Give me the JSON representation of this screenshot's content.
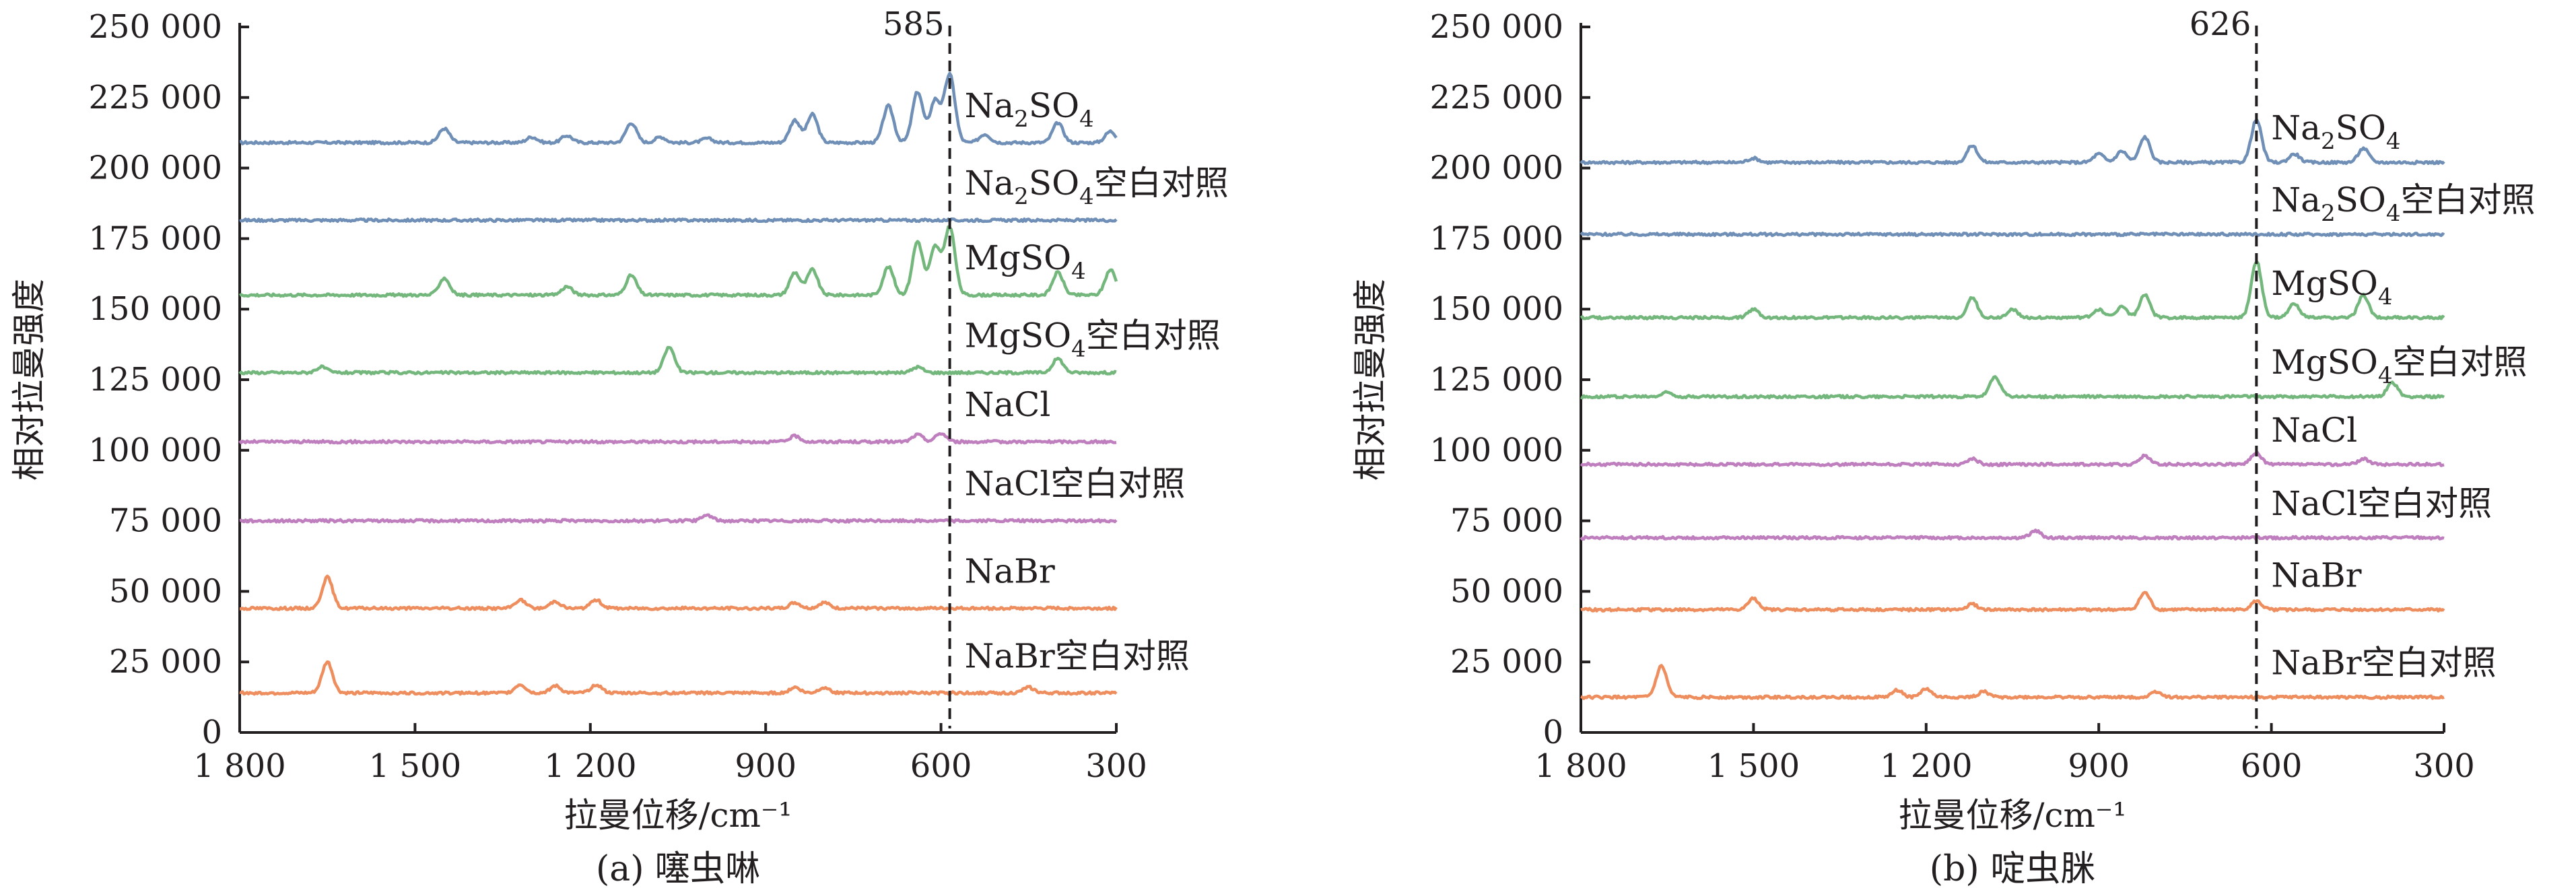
{
  "chart_data": [
    {
      "type": "line",
      "caption": "(a) 噻虫啉",
      "xlabel": "拉曼位移/cm⁻¹",
      "ylabel": "相对拉曼强度",
      "xlim": [
        1800,
        300
      ],
      "ylim": [
        0,
        250000
      ],
      "x_ticks": [
        1800,
        1500,
        1200,
        900,
        600,
        300
      ],
      "x_tick_labels": [
        "1 800",
        "1 500",
        "1 200",
        "900",
        "600",
        "300"
      ],
      "y_ticks": [
        0,
        25000,
        50000,
        75000,
        100000,
        125000,
        150000,
        175000,
        200000,
        225000,
        250000
      ],
      "y_tick_labels": [
        "0",
        "25 000",
        "50 000",
        "75 000",
        "100 000",
        "125 000",
        "150 000",
        "175 000",
        "200 000",
        "225 000",
        "250 000"
      ],
      "reference_line": {
        "x": 585,
        "label": "585"
      },
      "colors": {
        "Na2SO4": "#6f8fb7",
        "MgSO4": "#74b77c",
        "NaCl": "#bf7fbe",
        "NaBr": "#ee8d5d"
      },
      "series": [
        {
          "name": "Na2SO4",
          "display": {
            "main": "Na",
            "sub": "2",
            "mid": "SO",
            "sub2": "4",
            "suffix": ""
          },
          "color_key": "Na2SO4",
          "baseline": 209000,
          "peaks": [
            [
              1450,
              5000
            ],
            [
              1300,
              2000
            ],
            [
              1240,
              2500
            ],
            [
              1130,
              7000
            ],
            [
              1080,
              2000
            ],
            [
              1000,
              1500
            ],
            [
              850,
              8000
            ],
            [
              820,
              10000
            ],
            [
              690,
              13000
            ],
            [
              640,
              18000
            ],
            [
              610,
              15000
            ],
            [
              585,
              24000
            ],
            [
              525,
              3000
            ],
            [
              400,
              7000
            ],
            [
              310,
              4000
            ]
          ]
        },
        {
          "name": "Na2SO4空白对照",
          "display": {
            "main": "Na",
            "sub": "2",
            "mid": "SO",
            "sub2": "4",
            "suffix": "空白对照"
          },
          "color_key": "Na2SO4",
          "baseline": 181500,
          "peaks": []
        },
        {
          "name": "MgSO4",
          "display": {
            "main": "MgSO",
            "sub": "4",
            "mid": "",
            "sub2": "",
            "suffix": ""
          },
          "color_key": "MgSO4",
          "baseline": 155000,
          "peaks": [
            [
              1450,
              6000
            ],
            [
              1240,
              3000
            ],
            [
              1130,
              7000
            ],
            [
              850,
              8000
            ],
            [
              820,
              9000
            ],
            [
              690,
              10000
            ],
            [
              640,
              19000
            ],
            [
              610,
              17000
            ],
            [
              585,
              24000
            ],
            [
              400,
              8000
            ],
            [
              310,
              9000
            ]
          ]
        },
        {
          "name": "MgSO4空白对照",
          "display": {
            "main": "MgSO",
            "sub": "4",
            "mid": "",
            "sub2": "",
            "suffix": "空白对照"
          },
          "color_key": "MgSO4",
          "baseline": 127500,
          "peaks": [
            [
              1660,
              2000
            ],
            [
              1065,
              9000
            ],
            [
              640,
              2000
            ],
            [
              400,
              5000
            ]
          ]
        },
        {
          "name": "NaCl",
          "display": {
            "main": "NaCl",
            "sub": "",
            "mid": "",
            "sub2": "",
            "suffix": ""
          },
          "color_key": "NaCl",
          "baseline": 103000,
          "peaks": [
            [
              850,
              2000
            ],
            [
              640,
              2500
            ],
            [
              600,
              3000
            ]
          ]
        },
        {
          "name": "NaCl空白对照",
          "display": {
            "main": "NaCl",
            "sub": "",
            "mid": "",
            "sub2": "",
            "suffix": "空白对照"
          },
          "color_key": "NaCl",
          "baseline": 75000,
          "peaks": [
            [
              1000,
              2000
            ]
          ]
        },
        {
          "name": "NaBr",
          "display": {
            "main": "NaBr",
            "sub": "",
            "mid": "",
            "sub2": "",
            "suffix": ""
          },
          "color_key": "NaBr",
          "baseline": 44000,
          "peaks": [
            [
              1650,
              11000
            ],
            [
              1320,
              3000
            ],
            [
              1260,
              2500
            ],
            [
              1190,
              3000
            ],
            [
              850,
              2000
            ],
            [
              800,
              2000
            ]
          ]
        },
        {
          "name": "NaBr空白对照",
          "display": {
            "main": "NaBr",
            "sub": "",
            "mid": "",
            "sub2": "",
            "suffix": "空白对照"
          },
          "color_key": "NaBr",
          "baseline": 14000,
          "peaks": [
            [
              1650,
              11000
            ],
            [
              1320,
              3000
            ],
            [
              1260,
              2500
            ],
            [
              1190,
              3000
            ],
            [
              850,
              2000
            ],
            [
              800,
              2000
            ],
            [
              450,
              2000
            ]
          ]
        }
      ]
    },
    {
      "type": "line",
      "caption": "(b) 啶虫脒",
      "xlabel": "拉曼位移/cm⁻¹",
      "ylabel": "相对拉曼强度",
      "xlim": [
        1800,
        300
      ],
      "ylim": [
        0,
        250000
      ],
      "x_ticks": [
        1800,
        1500,
        1200,
        900,
        600,
        300
      ],
      "x_tick_labels": [
        "1 800",
        "1 500",
        "1 200",
        "900",
        "600",
        "300"
      ],
      "y_ticks": [
        0,
        25000,
        50000,
        75000,
        100000,
        125000,
        150000,
        175000,
        200000,
        225000,
        250000
      ],
      "y_tick_labels": [
        "0",
        "25 000",
        "50 000",
        "75 000",
        "100 000",
        "125 000",
        "150 000",
        "175 000",
        "200 000",
        "225 000",
        "250 000"
      ],
      "reference_line": {
        "x": 626,
        "label": "626"
      },
      "colors": {
        "Na2SO4": "#6f8fb7",
        "MgSO4": "#74b77c",
        "NaCl": "#bf7fbe",
        "NaBr": "#ee8d5d"
      },
      "series": [
        {
          "name": "Na2SO4",
          "display": {
            "main": "Na",
            "sub": "2",
            "mid": "SO",
            "sub2": "4",
            "suffix": ""
          },
          "color_key": "Na2SO4",
          "baseline": 202000,
          "peaks": [
            [
              1500,
              1500
            ],
            [
              1120,
              6000
            ],
            [
              900,
              3000
            ],
            [
              860,
              4000
            ],
            [
              820,
              9000
            ],
            [
              626,
              15000
            ],
            [
              560,
              3000
            ],
            [
              440,
              5000
            ]
          ]
        },
        {
          "name": "Na2SO4空白对照",
          "display": {
            "main": "Na",
            "sub": "2",
            "mid": "SO",
            "sub2": "4",
            "suffix": "空白对照"
          },
          "color_key": "Na2SO4",
          "baseline": 176500,
          "peaks": []
        },
        {
          "name": "MgSO4",
          "display": {
            "main": "MgSO",
            "sub": "4",
            "mid": "",
            "sub2": "",
            "suffix": ""
          },
          "color_key": "MgSO4",
          "baseline": 147000,
          "peaks": [
            [
              1500,
              3000
            ],
            [
              1120,
              7000
            ],
            [
              1050,
              3000
            ],
            [
              900,
              3000
            ],
            [
              860,
              4000
            ],
            [
              820,
              8000
            ],
            [
              626,
              20000
            ],
            [
              560,
              5000
            ],
            [
              440,
              8000
            ]
          ]
        },
        {
          "name": "MgSO4空白对照",
          "display": {
            "main": "MgSO",
            "sub": "4",
            "mid": "",
            "sub2": "",
            "suffix": "空白对照"
          },
          "color_key": "MgSO4",
          "baseline": 119000,
          "peaks": [
            [
              1650,
              1500
            ],
            [
              1080,
              7000
            ],
            [
              390,
              5000
            ]
          ]
        },
        {
          "name": "NaCl",
          "display": {
            "main": "NaCl",
            "sub": "",
            "mid": "",
            "sub2": "",
            "suffix": ""
          },
          "color_key": "NaCl",
          "baseline": 95000,
          "peaks": [
            [
              1120,
              2000
            ],
            [
              820,
              3000
            ],
            [
              626,
              4000
            ],
            [
              440,
              2000
            ]
          ]
        },
        {
          "name": "NaCl空白对照",
          "display": {
            "main": "NaCl",
            "sub": "",
            "mid": "",
            "sub2": "",
            "suffix": "空白对照"
          },
          "color_key": "NaCl",
          "baseline": 69000,
          "peaks": [
            [
              1010,
              2500
            ]
          ]
        },
        {
          "name": "NaBr",
          "display": {
            "main": "NaBr",
            "sub": "",
            "mid": "",
            "sub2": "",
            "suffix": ""
          },
          "color_key": "NaBr",
          "baseline": 43500,
          "peaks": [
            [
              1500,
              4000
            ],
            [
              1120,
              2000
            ],
            [
              820,
              6000
            ],
            [
              626,
              3000
            ]
          ]
        },
        {
          "name": "NaBr空白对照",
          "display": {
            "main": "NaBr",
            "sub": "",
            "mid": "",
            "sub2": "",
            "suffix": "空白对照"
          },
          "color_key": "NaBr",
          "baseline": 12500,
          "peaks": [
            [
              1660,
              11000
            ],
            [
              1250,
              2500
            ],
            [
              1200,
              3000
            ],
            [
              1100,
              2000
            ],
            [
              800,
              2000
            ]
          ]
        }
      ]
    }
  ]
}
